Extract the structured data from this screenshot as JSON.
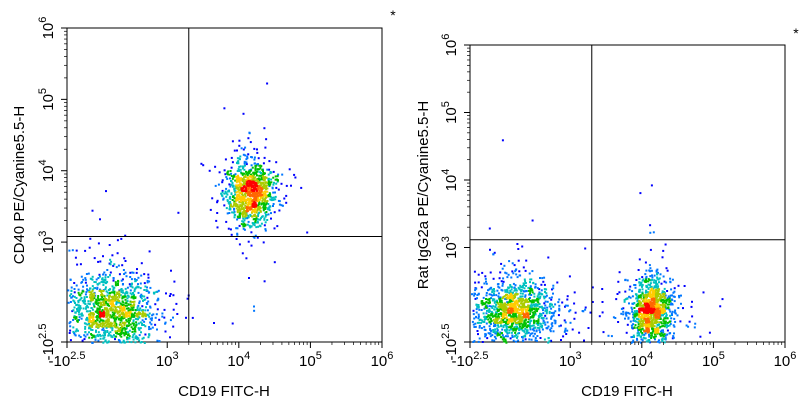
{
  "chart_data": [
    {
      "type": "scatter",
      "corner_mark": "*",
      "xlabel": "CD19 FITC-H",
      "ylabel": "CD40 PE/Cyanine5.5-H",
      "x_scale": "biexponential",
      "y_scale": "biexponential",
      "xlim": [
        -316,
        1000000
      ],
      "ylim": [
        -316,
        1000000
      ],
      "x_ticks": [
        {
          "base": "-10",
          "exp": "2.5",
          "value": -316
        },
        {
          "base": "10",
          "exp": "3",
          "value": 1000
        },
        {
          "base": "10",
          "exp": "4",
          "value": 10000
        },
        {
          "base": "10",
          "exp": "5",
          "value": 100000
        },
        {
          "base": "10",
          "exp": "6",
          "value": 1000000
        }
      ],
      "y_ticks": [
        {
          "base": "-10",
          "exp": "2.5",
          "value": -316
        },
        {
          "base": "10",
          "exp": "3",
          "value": 1000
        },
        {
          "base": "10",
          "exp": "4",
          "value": 10000
        },
        {
          "base": "10",
          "exp": "5",
          "value": 100000
        },
        {
          "base": "10",
          "exp": "6",
          "value": 1000000
        }
      ],
      "gate_x": 2000,
      "gate_y": 1200,
      "grid": false,
      "populations": [
        {
          "center_x": 200,
          "center_y": 50,
          "spread_x": 0.32,
          "spread_y": 0.26,
          "events": 1300
        },
        {
          "center_x": 14000,
          "center_y": 5000,
          "spread_x": 0.16,
          "spread_y": 0.22,
          "events": 1100
        }
      ]
    },
    {
      "type": "scatter",
      "corner_mark": "*",
      "xlabel": "CD19 FITC-H",
      "ylabel": "Rat IgG2a PE/Cyanine5.5-H",
      "x_scale": "biexponential",
      "y_scale": "biexponential",
      "xlim": [
        -316,
        1000000
      ],
      "ylim": [
        -316,
        1000000
      ],
      "x_ticks": [
        {
          "base": "-10",
          "exp": "2.5",
          "value": -316
        },
        {
          "base": "10",
          "exp": "3",
          "value": 1000
        },
        {
          "base": "10",
          "exp": "4",
          "value": 10000
        },
        {
          "base": "10",
          "exp": "5",
          "value": 100000
        },
        {
          "base": "10",
          "exp": "6",
          "value": 1000000
        }
      ],
      "y_ticks": [
        {
          "base": "-10",
          "exp": "2.5",
          "value": -316
        },
        {
          "base": "10",
          "exp": "3",
          "value": 1000
        },
        {
          "base": "10",
          "exp": "4",
          "value": 10000
        },
        {
          "base": "10",
          "exp": "5",
          "value": 100000
        },
        {
          "base": "10",
          "exp": "6",
          "value": 1000000
        }
      ],
      "gate_x": 2000,
      "gate_y": 1300,
      "grid": false,
      "populations": [
        {
          "center_x": 200,
          "center_y": 60,
          "spread_x": 0.3,
          "spread_y": 0.24,
          "events": 1300
        },
        {
          "center_x": 13000,
          "center_y": 80,
          "spread_x": 0.15,
          "spread_y": 0.24,
          "events": 1100
        }
      ]
    }
  ],
  "colors": {
    "density_scale": [
      "#0000ff",
      "#0077ff",
      "#00c0c0",
      "#00c000",
      "#aacc00",
      "#ffcc00",
      "#ff6600",
      "#ff0000"
    ],
    "axis": "#000000"
  }
}
